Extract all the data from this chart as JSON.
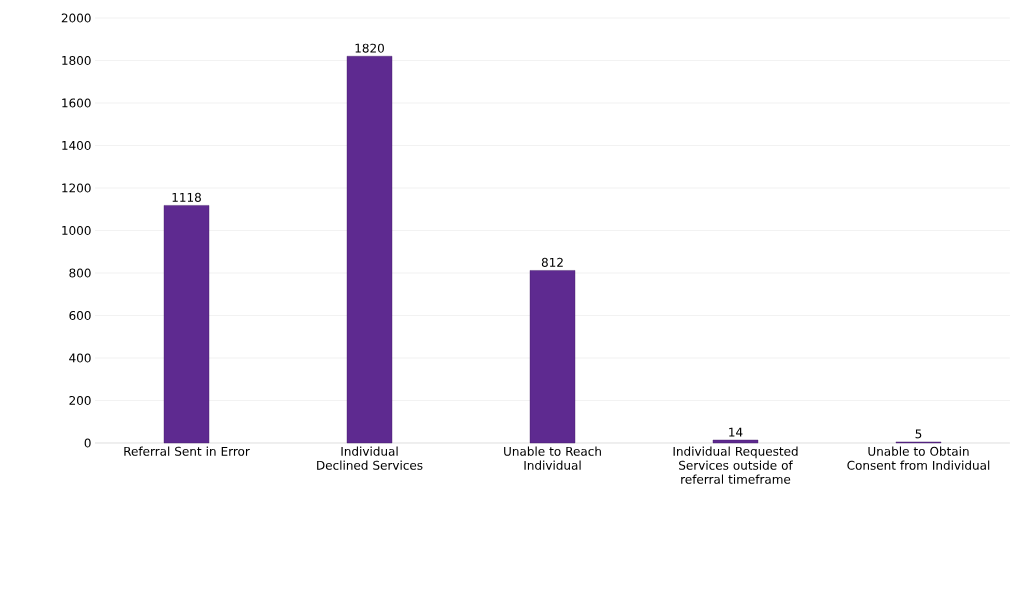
{
  "chart_data": {
    "type": "bar",
    "categories": [
      "Referral Sent in Error",
      "Individual Declined Services",
      "Unable to Reach Individual",
      "Individual Requested Services outside of referral timeframe",
      "Unable to Obtain Consent from Individual"
    ],
    "values": [
      1118,
      1820,
      812,
      14,
      5
    ],
    "color": "#5e2a90",
    "ylim": [
      0,
      2000
    ],
    "yticks": [
      0,
      200,
      400,
      600,
      800,
      1000,
      1200,
      1400,
      1600,
      1800,
      2000
    ],
    "grid": "y",
    "data_labels": true
  }
}
